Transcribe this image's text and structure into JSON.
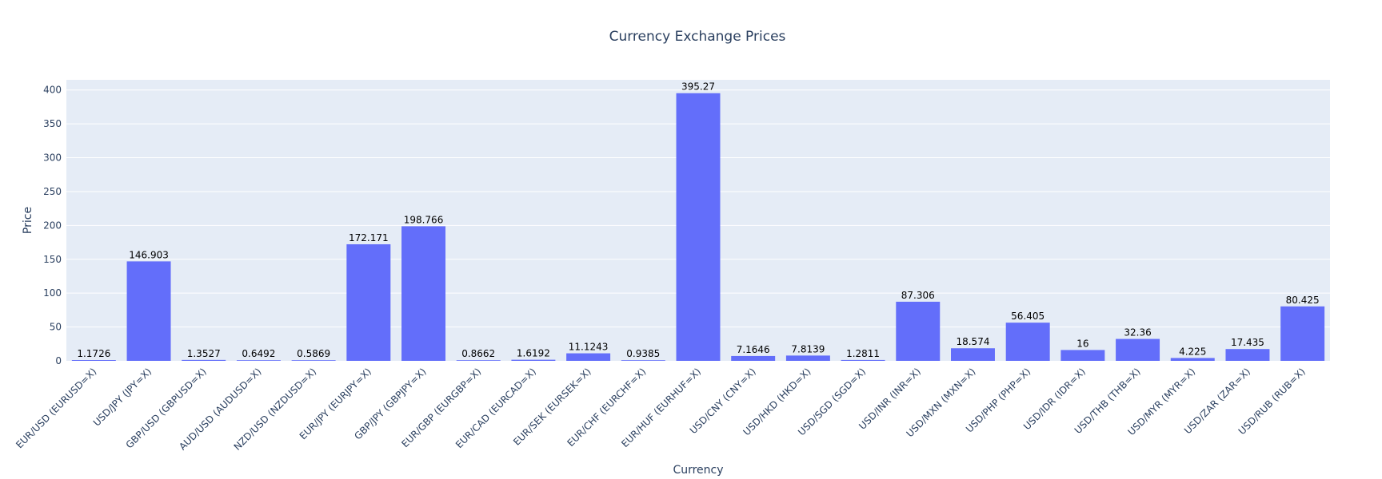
{
  "chart_data": {
    "type": "bar",
    "title": "Currency Exchange Prices",
    "xlabel": "Currency",
    "ylabel": "Price",
    "ylim": [
      0,
      415
    ],
    "yticks": [
      0,
      50,
      100,
      150,
      200,
      250,
      300,
      350,
      400
    ],
    "grid": true,
    "legend": "none",
    "bar_color": "#636efa",
    "plot_bg": "#e5ecf6",
    "categories": [
      "EUR/USD (EURUSD=X)",
      "USD/JPY (JPY=X)",
      "GBP/USD (GBPUSD=X)",
      "AUD/USD (AUDUSD=X)",
      "NZD/USD (NZDUSD=X)",
      "EUR/JPY (EURJPY=X)",
      "GBP/JPY (GBPJPY=X)",
      "EUR/GBP (EURGBP=X)",
      "EUR/CAD (EURCAD=X)",
      "EUR/SEK (EURSEK=X)",
      "EUR/CHF (EURCHF=X)",
      "EUR/HUF (EURHUF=X)",
      "USD/CNY (CNY=X)",
      "USD/HKD (HKD=X)",
      "USD/SGD (SGD=X)",
      "USD/INR (INR=X)",
      "USD/MXN (MXN=X)",
      "USD/PHP (PHP=X)",
      "USD/IDR (IDR=X)",
      "USD/THB (THB=X)",
      "USD/MYR (MYR=X)",
      "USD/ZAR (ZAR=X)",
      "USD/RUB (RUB=X)"
    ],
    "values": [
      1.1726,
      146.903,
      1.3527,
      0.6492,
      0.5869,
      172.171,
      198.766,
      0.8662,
      1.6192,
      11.1243,
      0.9385,
      395.27,
      7.1646,
      7.8139,
      1.2811,
      87.306,
      18.574,
      56.405,
      16,
      32.36,
      4.225,
      17.435,
      80.425
    ],
    "labels": [
      "1.1726",
      "146.903",
      "1.3527",
      "0.6492",
      "0.5869",
      "172.171",
      "198.766",
      "0.8662",
      "1.6192",
      "11.1243",
      "0.9385",
      "395.27",
      "7.1646",
      "7.8139",
      "1.2811",
      "87.306",
      "18.574",
      "56.405",
      "16",
      "32.36",
      "4.225",
      "17.435",
      "80.425"
    ]
  }
}
